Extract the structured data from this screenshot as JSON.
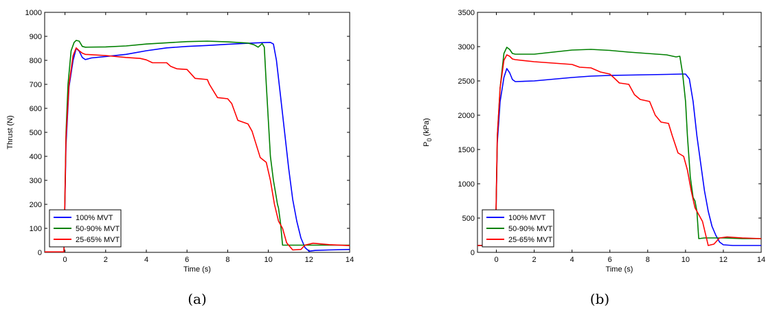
{
  "chart_data": [
    {
      "type": "line",
      "caption": "(a)",
      "title": "",
      "xlabel": "Time (s)",
      "ylabel": "Thrust (N)",
      "xlim": [
        -1,
        14
      ],
      "ylim": [
        0,
        1000
      ],
      "xticks": [
        0,
        2,
        4,
        6,
        8,
        10,
        12,
        14
      ],
      "yticks": [
        0,
        100,
        200,
        300,
        400,
        500,
        600,
        700,
        800,
        900,
        1000
      ],
      "grid": false,
      "legend_position": "bottom-left",
      "series": [
        {
          "name": "100% MVT",
          "color": "#0000ff",
          "points": [
            [
              -1,
              0
            ],
            [
              -0.05,
              0
            ],
            [
              0.05,
              450
            ],
            [
              0.2,
              690
            ],
            [
              0.4,
              800
            ],
            [
              0.55,
              850
            ],
            [
              0.7,
              838
            ],
            [
              0.85,
              812
            ],
            [
              1.0,
              803
            ],
            [
              1.3,
              810
            ],
            [
              2,
              816
            ],
            [
              3,
              825
            ],
            [
              4,
              840
            ],
            [
              5,
              852
            ],
            [
              6,
              858
            ],
            [
              7,
              862
            ],
            [
              8,
              867
            ],
            [
              9,
              871
            ],
            [
              9.5,
              873
            ],
            [
              10.1,
              875
            ],
            [
              10.25,
              868
            ],
            [
              10.4,
              800
            ],
            [
              10.6,
              650
            ],
            [
              10.8,
              500
            ],
            [
              11.0,
              350
            ],
            [
              11.2,
              220
            ],
            [
              11.4,
              130
            ],
            [
              11.6,
              60
            ],
            [
              11.8,
              20
            ],
            [
              12.0,
              5
            ],
            [
              12.3,
              8
            ],
            [
              13,
              10
            ],
            [
              14,
              12
            ]
          ]
        },
        {
          "name": "50-90% MVT",
          "color": "#008000",
          "points": [
            [
              -1,
              0
            ],
            [
              -0.05,
              0
            ],
            [
              0.05,
              500
            ],
            [
              0.15,
              700
            ],
            [
              0.3,
              840
            ],
            [
              0.45,
              875
            ],
            [
              0.55,
              883
            ],
            [
              0.7,
              880
            ],
            [
              0.85,
              858
            ],
            [
              1.0,
              855
            ],
            [
              2,
              856
            ],
            [
              3,
              860
            ],
            [
              4,
              868
            ],
            [
              5,
              873
            ],
            [
              6,
              878
            ],
            [
              7,
              880
            ],
            [
              8,
              877
            ],
            [
              9,
              872
            ],
            [
              9.3,
              865
            ],
            [
              9.5,
              855
            ],
            [
              9.7,
              870
            ],
            [
              9.8,
              855
            ],
            [
              9.9,
              700
            ],
            [
              10.0,
              550
            ],
            [
              10.1,
              400
            ],
            [
              10.25,
              300
            ],
            [
              10.35,
              250
            ],
            [
              10.45,
              200
            ],
            [
              10.5,
              185
            ],
            [
              10.6,
              120
            ],
            [
              10.7,
              30
            ],
            [
              11.0,
              30
            ],
            [
              12,
              30
            ],
            [
              13,
              30
            ],
            [
              14,
              30
            ]
          ]
        },
        {
          "name": "25-65% MVT",
          "color": "#ff0000",
          "points": [
            [
              -1,
              2
            ],
            [
              -0.05,
              2
            ],
            [
              0.05,
              480
            ],
            [
              0.2,
              700
            ],
            [
              0.4,
              820
            ],
            [
              0.55,
              852
            ],
            [
              0.7,
              840
            ],
            [
              0.85,
              830
            ],
            [
              1.0,
              825
            ],
            [
              2,
              820
            ],
            [
              3,
              812
            ],
            [
              3.7,
              808
            ],
            [
              4,
              802
            ],
            [
              4.3,
              790
            ],
            [
              5,
              790
            ],
            [
              5.2,
              775
            ],
            [
              5.5,
              765
            ],
            [
              6,
              762
            ],
            [
              6.4,
              725
            ],
            [
              7,
              720
            ],
            [
              7.1,
              700
            ],
            [
              7.5,
              645
            ],
            [
              8,
              640
            ],
            [
              8.2,
              620
            ],
            [
              8.5,
              550
            ],
            [
              9,
              535
            ],
            [
              9.2,
              505
            ],
            [
              9.6,
              395
            ],
            [
              9.9,
              375
            ],
            [
              10.1,
              300
            ],
            [
              10.3,
              200
            ],
            [
              10.5,
              130
            ],
            [
              10.7,
              100
            ],
            [
              10.9,
              40
            ],
            [
              11.2,
              10
            ],
            [
              11.6,
              12
            ],
            [
              11.8,
              30
            ],
            [
              12.2,
              38
            ],
            [
              13,
              32
            ],
            [
              14,
              28
            ]
          ]
        }
      ]
    },
    {
      "type": "line",
      "caption": "(b)",
      "title": "",
      "xlabel": "Time (s)",
      "ylabel": "P",
      "ylabel_sub": "0",
      "ylabel_suffix": " (kPa)",
      "xlim": [
        -1,
        14
      ],
      "ylim": [
        0,
        3500
      ],
      "xticks": [
        0,
        2,
        4,
        6,
        8,
        10,
        12,
        14
      ],
      "yticks": [
        0,
        500,
        1000,
        1500,
        2000,
        2500,
        3000,
        3500
      ],
      "grid": false,
      "legend_position": "bottom-left",
      "series": [
        {
          "name": "100% MVT",
          "color": "#0000ff",
          "points": [
            [
              -1,
              100
            ],
            [
              -0.05,
              100
            ],
            [
              0.05,
              1600
            ],
            [
              0.2,
              2200
            ],
            [
              0.4,
              2550
            ],
            [
              0.55,
              2680
            ],
            [
              0.7,
              2620
            ],
            [
              0.85,
              2520
            ],
            [
              1.0,
              2490
            ],
            [
              2,
              2500
            ],
            [
              3,
              2525
            ],
            [
              4,
              2550
            ],
            [
              5,
              2570
            ],
            [
              6,
              2580
            ],
            [
              7,
              2585
            ],
            [
              8,
              2590
            ],
            [
              9,
              2595
            ],
            [
              9.8,
              2600
            ],
            [
              10.0,
              2600
            ],
            [
              10.2,
              2530
            ],
            [
              10.4,
              2200
            ],
            [
              10.6,
              1700
            ],
            [
              10.8,
              1300
            ],
            [
              11.0,
              900
            ],
            [
              11.2,
              600
            ],
            [
              11.4,
              380
            ],
            [
              11.6,
              250
            ],
            [
              11.8,
              150
            ],
            [
              12.0,
              110
            ],
            [
              12.5,
              100
            ],
            [
              13,
              100
            ],
            [
              14,
              100
            ]
          ]
        },
        {
          "name": "50-90% MVT",
          "color": "#008000",
          "points": [
            [
              -1,
              100
            ],
            [
              -0.05,
              100
            ],
            [
              0.05,
              1700
            ],
            [
              0.2,
              2400
            ],
            [
              0.4,
              2900
            ],
            [
              0.55,
              2990
            ],
            [
              0.7,
              2960
            ],
            [
              0.85,
              2900
            ],
            [
              1.0,
              2890
            ],
            [
              2,
              2890
            ],
            [
              3,
              2920
            ],
            [
              4,
              2950
            ],
            [
              5,
              2960
            ],
            [
              6,
              2945
            ],
            [
              7,
              2920
            ],
            [
              8,
              2900
            ],
            [
              9,
              2880
            ],
            [
              9.5,
              2850
            ],
            [
              9.7,
              2860
            ],
            [
              9.85,
              2600
            ],
            [
              10.0,
              2200
            ],
            [
              10.1,
              1700
            ],
            [
              10.25,
              1100
            ],
            [
              10.4,
              800
            ],
            [
              10.5,
              750
            ],
            [
              10.6,
              600
            ],
            [
              10.7,
              200
            ],
            [
              11.0,
              210
            ],
            [
              12,
              210
            ],
            [
              13,
              200
            ],
            [
              14,
              200
            ]
          ]
        },
        {
          "name": "25-65% MVT",
          "color": "#ff0000",
          "points": [
            [
              -1,
              100
            ],
            [
              -0.05,
              100
            ],
            [
              0.05,
              1700
            ],
            [
              0.2,
              2400
            ],
            [
              0.4,
              2800
            ],
            [
              0.55,
              2880
            ],
            [
              0.7,
              2860
            ],
            [
              0.85,
              2820
            ],
            [
              1.0,
              2810
            ],
            [
              2,
              2780
            ],
            [
              3,
              2760
            ],
            [
              4,
              2740
            ],
            [
              4.4,
              2700
            ],
            [
              5,
              2690
            ],
            [
              5.5,
              2630
            ],
            [
              6,
              2600
            ],
            [
              6.2,
              2550
            ],
            [
              6.5,
              2470
            ],
            [
              7,
              2450
            ],
            [
              7.3,
              2300
            ],
            [
              7.6,
              2230
            ],
            [
              8.1,
              2200
            ],
            [
              8.4,
              2000
            ],
            [
              8.7,
              1900
            ],
            [
              9.1,
              1880
            ],
            [
              9.3,
              1700
            ],
            [
              9.6,
              1450
            ],
            [
              9.9,
              1400
            ],
            [
              10.1,
              1200
            ],
            [
              10.3,
              900
            ],
            [
              10.5,
              650
            ],
            [
              10.7,
              550
            ],
            [
              10.9,
              450
            ],
            [
              11.2,
              100
            ],
            [
              11.5,
              120
            ],
            [
              11.8,
              210
            ],
            [
              12.2,
              225
            ],
            [
              13,
              210
            ],
            [
              14,
              200
            ]
          ]
        }
      ]
    }
  ]
}
